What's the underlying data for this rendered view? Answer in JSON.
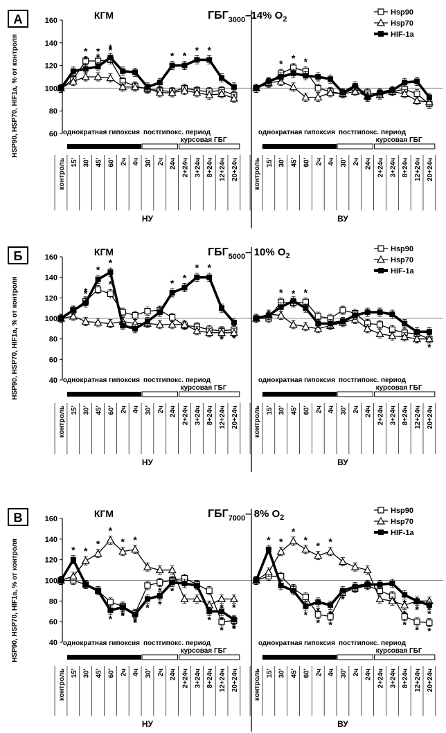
{
  "chart_data": [
    {
      "type": "line",
      "panel_label": "А",
      "left_title": "КГМ",
      "title_main": "ГБГ",
      "title_sub": "3000",
      "title_rest": "–14% O",
      "title_o2sub": "2",
      "ylabel": "HSP90, HSP70, HIF1a, % от контроля",
      "ylim": [
        60,
        160
      ],
      "yticks": [
        60,
        80,
        100,
        120,
        140,
        160
      ],
      "legend": [
        "Hsp90",
        "Hsp70",
        "HIF-1a"
      ],
      "groups": [
        {
          "xlabel": "НУ",
          "phase_labels": [
            "однократная гипоксия",
            "постгипокс. период",
            "курсовая ГБГ"
          ],
          "categories": [
            "контроль",
            "15'",
            "30'",
            "45'",
            "60'",
            "2ч",
            "4ч",
            "30'",
            "2ч",
            "24ч",
            "2+24ч",
            "3+24ч",
            "8+24ч",
            "12+24ч",
            "20+24ч"
          ],
          "series": [
            {
              "name": "Hsp90",
              "values": [
                100,
                108,
                124,
                124,
                125,
                106,
                102,
                99,
                98,
                97,
                100,
                98,
                97,
                98,
                94
              ],
              "stars": [
                2,
                3,
                4
              ]
            },
            {
              "name": "Hsp70",
              "values": [
                100,
                106,
                110,
                110,
                109,
                101,
                101,
                100,
                96,
                96,
                98,
                96,
                94,
                95,
                91
              ],
              "stars": []
            },
            {
              "name": "HIF-1a",
              "values": [
                100,
                115,
                117,
                119,
                127,
                115,
                114,
                101,
                105,
                120,
                120,
                125,
                125,
                109,
                101
              ],
              "stars": [
                2,
                3,
                4,
                9,
                10,
                11,
                12
              ]
            }
          ]
        },
        {
          "xlabel": "ВУ",
          "phase_labels": [
            "однократная гипоксия",
            "постгипокс. период",
            "курсовая ГБГ"
          ],
          "categories": [
            "контроль",
            "15'",
            "30'",
            "45'",
            "60'",
            "2ч",
            "4ч",
            "30'",
            "2ч",
            "24ч",
            "2+24ч",
            "3+24ч",
            "8+24ч",
            "12+24ч",
            "20+24ч"
          ],
          "series": [
            {
              "name": "Hsp90",
              "values": [
                100,
                104,
                113,
                118,
                115,
                100,
                97,
                95,
                100,
                96,
                95,
                97,
                99,
                95,
                86
              ],
              "stars": [
                2,
                3,
                4
              ]
            },
            {
              "name": "Hsp70",
              "values": [
                100,
                105,
                106,
                101,
                92,
                92,
                96,
                95,
                97,
                93,
                94,
                97,
                95,
                89,
                88
              ],
              "stars": []
            },
            {
              "name": "HIF-1a",
              "values": [
                100,
                106,
                110,
                113,
                111,
                110,
                108,
                96,
                102,
                92,
                96,
                98,
                105,
                106,
                92
              ],
              "stars": []
            }
          ]
        }
      ]
    },
    {
      "type": "line",
      "panel_label": "Б",
      "left_title": "КГМ",
      "title_main": "ГБГ",
      "title_sub": "5000",
      "title_rest": "– 10% O",
      "title_o2sub": "2",
      "ylabel": "HSP90, HSP70, HIF1a, % от контроля",
      "ylim": [
        40,
        160
      ],
      "yticks": [
        40,
        60,
        80,
        100,
        120,
        140,
        160
      ],
      "legend": [
        "Hsp90",
        "Hsp70",
        "HIF-1a"
      ],
      "groups": [
        {
          "xlabel": "НУ",
          "phase_labels": [
            "однократная гипоксия",
            "постгипокс. период",
            "курсовая ГБГ"
          ],
          "categories": [
            "контроль",
            "15'",
            "30'",
            "45'",
            "60'",
            "2ч",
            "4ч",
            "30'",
            "2ч",
            "24ч",
            "2+24ч",
            "3+24ч",
            "8+24ч",
            "12+24ч",
            "20+24ч"
          ],
          "series": [
            {
              "name": "Hsp90",
              "values": [
                100,
                108,
                117,
                128,
                124,
                106,
                103,
                107,
                108,
                101,
                93,
                92,
                89,
                88,
                89
              ],
              "stars": [
                2,
                3,
                4,
                13,
                14
              ]
            },
            {
              "name": "Hsp70",
              "values": [
                100,
                102,
                97,
                96,
                95,
                97,
                95,
                95,
                94,
                94,
                94,
                88,
                86,
                86,
                86
              ],
              "stars": []
            },
            {
              "name": "HIF-1a",
              "values": [
                100,
                108,
                115,
                138,
                145,
                93,
                90,
                97,
                106,
                125,
                130,
                140,
                140,
                110,
                96
              ],
              "stars": [
                2,
                3,
                4,
                9,
                10,
                11,
                12
              ]
            }
          ]
        },
        {
          "xlabel": "ВУ",
          "phase_labels": [
            "однократная гипоксия",
            "постгипокс. период",
            "курсовая ГБГ"
          ],
          "categories": [
            "контроль",
            "15'",
            "30'",
            "45'",
            "60'",
            "2ч",
            "4ч",
            "30'",
            "2ч",
            "24ч",
            "2+24ч",
            "3+24ч",
            "8+24ч",
            "12+24ч",
            "20+24ч"
          ],
          "series": [
            {
              "name": "Hsp90",
              "values": [
                100,
                100,
                116,
                115,
                116,
                102,
                100,
                108,
                105,
                95,
                94,
                89,
                86,
                85,
                80
              ],
              "stars": [
                2,
                3,
                4,
                13,
                14
              ]
            },
            {
              "name": "Hsp70",
              "values": [
                100,
                104,
                103,
                94,
                92,
                90,
                93,
                96,
                99,
                90,
                85,
                83,
                82,
                80,
                80
              ],
              "stars": []
            },
            {
              "name": "HIF-1a",
              "values": [
                100,
                103,
                111,
                117,
                110,
                95,
                95,
                97,
                103,
                106,
                106,
                104,
                95,
                87,
                87
              ],
              "stars": []
            }
          ]
        }
      ]
    },
    {
      "type": "line",
      "panel_label": "В",
      "left_title": "КГМ",
      "title_main": "ГБГ",
      "title_sub": "7000",
      "title_rest": "– 8% O",
      "title_o2sub": "2",
      "ylabel": "HSP90, HSP70, HIF1a, % от контроля",
      "ylim": [
        40,
        160
      ],
      "yticks": [
        40,
        60,
        80,
        100,
        120,
        140,
        160
      ],
      "legend": [
        "Hsp90",
        "Hsp70",
        "HIF-1a"
      ],
      "groups": [
        {
          "xlabel": "НУ",
          "phase_labels": [
            "однократная гипоксия",
            "постгипокс. период",
            "курсовая ГБГ"
          ],
          "categories": [
            "контроль",
            "15'",
            "30'",
            "45'",
            "60'",
            "2ч",
            "4ч",
            "30'",
            "2ч",
            "24ч",
            "2+24ч",
            "3+24ч",
            "8+24ч",
            "12+24ч",
            "20+24ч"
          ],
          "series": [
            {
              "name": "Hsp90",
              "values": [
                100,
                100,
                96,
                90,
                79,
                75,
                68,
                95,
                98,
                100,
                102,
                96,
                90,
                60,
                61
              ],
              "stars": [
                4,
                5,
                6,
                8,
                9,
                13,
                14
              ]
            },
            {
              "name": "Hsp70",
              "values": [
                100,
                104,
                119,
                126,
                139,
                128,
                130,
                113,
                110,
                110,
                82,
                82,
                76,
                82,
                82
              ],
              "stars": [
                2,
                3,
                4,
                5,
                6,
                12,
                13,
                14
              ]
            },
            {
              "name": "HIF-1a",
              "values": [
                100,
                120,
                96,
                90,
                71,
                74,
                67,
                82,
                85,
                98,
                97,
                95,
                70,
                70,
                62
              ],
              "stars": [
                1,
                4,
                5,
                6,
                7,
                8,
                9,
                12,
                13,
                14
              ]
            }
          ]
        },
        {
          "xlabel": "ВУ",
          "phase_labels": [
            "однократная гипоксия",
            "постгипокс. период",
            "курсовая ГБГ"
          ],
          "categories": [
            "контроль",
            "15'",
            "30'",
            "45'",
            "60'",
            "2ч",
            "4ч",
            "30'",
            "2ч",
            "24ч",
            "2+24ч",
            "3+24ч",
            "8+24ч",
            "12+24ч",
            "20+24ч"
          ],
          "series": [
            {
              "name": "Hsp90",
              "values": [
                100,
                104,
                104,
                92,
                84,
                67,
                65,
                88,
                92,
                95,
                90,
                85,
                65,
                60,
                59
              ],
              "stars": [
                4,
                5,
                6,
                12,
                13,
                14
              ]
            },
            {
              "name": "Hsp70",
              "values": [
                100,
                108,
                128,
                138,
                130,
                124,
                128,
                118,
                113,
                110,
                82,
                80,
                76,
                80,
                80
              ],
              "stars": [
                2,
                3,
                4,
                5,
                6,
                12,
                13,
                14
              ]
            },
            {
              "name": "HIF-1a",
              "values": [
                100,
                130,
                95,
                90,
                75,
                79,
                76,
                90,
                94,
                96,
                96,
                97,
                86,
                80,
                76
              ],
              "stars": [
                1,
                4,
                5,
                6,
                7,
                12,
                13,
                14
              ]
            }
          ]
        }
      ]
    }
  ]
}
